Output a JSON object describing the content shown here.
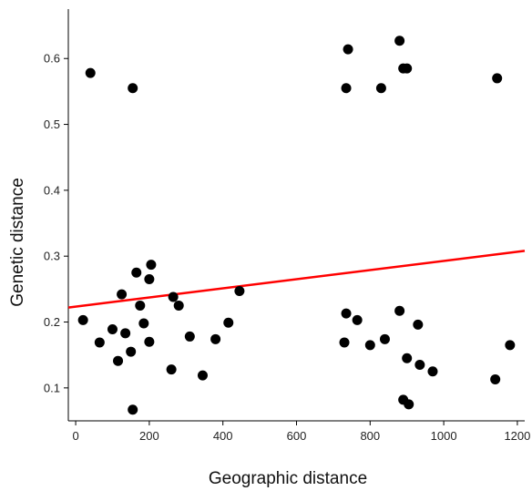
{
  "chart_data": {
    "type": "scatter",
    "xlabel": "Geographic distance",
    "ylabel": "Genetic distance",
    "xlim": [
      -20,
      1220
    ],
    "ylim": [
      0.05,
      0.675
    ],
    "x_ticks": [
      0,
      200,
      400,
      600,
      800,
      1000,
      1200
    ],
    "y_ticks": [
      0.1,
      0.2,
      0.3,
      0.4,
      0.5,
      0.6
    ],
    "x_tick_labels": [
      "0",
      "200",
      "400",
      "600",
      "800",
      "1000",
      "1200"
    ],
    "y_tick_labels": [
      "0.1",
      "0.2",
      "0.3",
      "0.4",
      "0.5",
      "0.6"
    ],
    "grid": false,
    "point_color": "#000000",
    "trend_line_color": "#ff0000",
    "trend_line": {
      "x": [
        -20,
        1220
      ],
      "y": [
        0.222,
        0.308
      ]
    },
    "points": [
      {
        "x": 40,
        "y": 0.578
      },
      {
        "x": 155,
        "y": 0.555
      },
      {
        "x": 20,
        "y": 0.203
      },
      {
        "x": 65,
        "y": 0.169
      },
      {
        "x": 100,
        "y": 0.189
      },
      {
        "x": 115,
        "y": 0.141
      },
      {
        "x": 125,
        "y": 0.242
      },
      {
        "x": 135,
        "y": 0.183
      },
      {
        "x": 150,
        "y": 0.155
      },
      {
        "x": 155,
        "y": 0.067
      },
      {
        "x": 165,
        "y": 0.275
      },
      {
        "x": 175,
        "y": 0.225
      },
      {
        "x": 185,
        "y": 0.198
      },
      {
        "x": 200,
        "y": 0.265
      },
      {
        "x": 205,
        "y": 0.287
      },
      {
        "x": 200,
        "y": 0.17
      },
      {
        "x": 260,
        "y": 0.128
      },
      {
        "x": 265,
        "y": 0.238
      },
      {
        "x": 280,
        "y": 0.225
      },
      {
        "x": 310,
        "y": 0.178
      },
      {
        "x": 345,
        "y": 0.119
      },
      {
        "x": 380,
        "y": 0.174
      },
      {
        "x": 415,
        "y": 0.199
      },
      {
        "x": 445,
        "y": 0.247
      },
      {
        "x": 735,
        "y": 0.555
      },
      {
        "x": 740,
        "y": 0.614
      },
      {
        "x": 830,
        "y": 0.555
      },
      {
        "x": 880,
        "y": 0.627
      },
      {
        "x": 890,
        "y": 0.585
      },
      {
        "x": 900,
        "y": 0.585
      },
      {
        "x": 1145,
        "y": 0.57
      },
      {
        "x": 730,
        "y": 0.169
      },
      {
        "x": 735,
        "y": 0.213
      },
      {
        "x": 765,
        "y": 0.203
      },
      {
        "x": 800,
        "y": 0.165
      },
      {
        "x": 840,
        "y": 0.174
      },
      {
        "x": 880,
        "y": 0.217
      },
      {
        "x": 890,
        "y": 0.082
      },
      {
        "x": 900,
        "y": 0.145
      },
      {
        "x": 905,
        "y": 0.075
      },
      {
        "x": 930,
        "y": 0.196
      },
      {
        "x": 935,
        "y": 0.135
      },
      {
        "x": 970,
        "y": 0.125
      },
      {
        "x": 1140,
        "y": 0.113
      },
      {
        "x": 1180,
        "y": 0.165
      }
    ]
  }
}
